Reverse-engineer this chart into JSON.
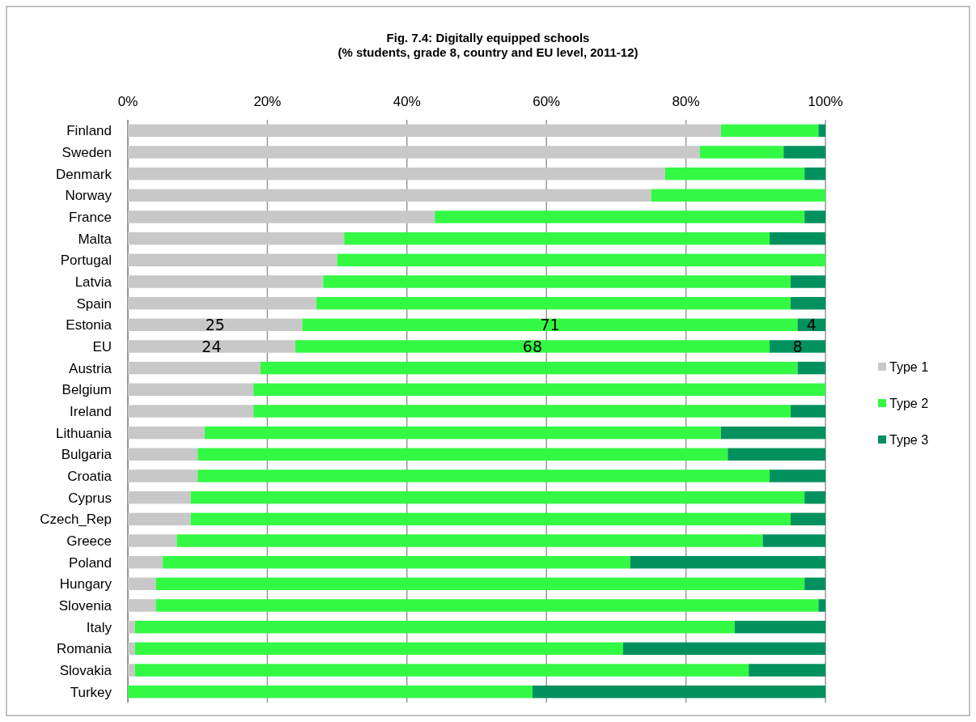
{
  "chart_data": {
    "type": "bar",
    "orientation": "horizontal",
    "stacked": true,
    "title": "Fig. 7.4: Digitally equipped schools",
    "subtitle": "(% students, grade 8, country and EU level, 2011-12)",
    "categories": [
      "Finland",
      "Sweden",
      "Denmark",
      "Norway",
      "France",
      "Malta",
      "Portugal",
      "Latvia",
      "Spain",
      "Estonia",
      "EU",
      "Austria",
      "Belgium",
      "Ireland",
      "Lithuania",
      "Bulgaria",
      "Croatia",
      "Cyprus",
      "Czech_Rep",
      "Greece",
      "Poland",
      "Hungary",
      "Slovenia",
      "Italy",
      "Romania",
      "Slovakia",
      "Turkey"
    ],
    "series": [
      {
        "name": "Type 1",
        "color": "#c8c8c8",
        "values": [
          85,
          82,
          77,
          75,
          44,
          31,
          30,
          28,
          27,
          25,
          24,
          19,
          18,
          18,
          11,
          10,
          10,
          9,
          9,
          7,
          5,
          4,
          4,
          1,
          1,
          1,
          0
        ],
        "value_labels": [
          null,
          null,
          null,
          null,
          null,
          null,
          null,
          null,
          null,
          "25",
          "24",
          null,
          null,
          null,
          null,
          null,
          null,
          null,
          null,
          null,
          null,
          null,
          null,
          null,
          null,
          null,
          null
        ]
      },
      {
        "name": "Type 2",
        "color": "#33f944",
        "values": [
          14,
          12,
          20,
          25,
          53,
          61,
          70,
          67,
          68,
          71,
          68,
          77,
          82,
          77,
          74,
          76,
          82,
          88,
          86,
          84,
          67,
          93,
          95,
          86,
          70,
          88,
          58
        ],
        "value_labels": [
          null,
          null,
          null,
          null,
          null,
          null,
          null,
          null,
          null,
          "71",
          "68",
          null,
          null,
          null,
          null,
          null,
          null,
          null,
          null,
          null,
          null,
          null,
          null,
          null,
          null,
          null,
          null
        ]
      },
      {
        "name": "Type 3",
        "color": "#00915e",
        "values": [
          1,
          6,
          3,
          0,
          3,
          8,
          0,
          5,
          5,
          4,
          8,
          4,
          0,
          5,
          15,
          14,
          8,
          3,
          5,
          9,
          28,
          3,
          1,
          13,
          29,
          11,
          42
        ],
        "value_labels": [
          null,
          null,
          null,
          null,
          null,
          null,
          null,
          null,
          null,
          "4",
          "8",
          null,
          null,
          null,
          null,
          null,
          null,
          null,
          null,
          null,
          null,
          null,
          null,
          null,
          null,
          null,
          null
        ]
      }
    ],
    "xlim": [
      0,
      100
    ],
    "xticks": [
      {
        "value": 0,
        "label": "0%"
      },
      {
        "value": 20,
        "label": "20%"
      },
      {
        "value": 40,
        "label": "40%"
      },
      {
        "value": 60,
        "label": "60%"
      },
      {
        "value": 80,
        "label": "80%"
      },
      {
        "value": 100,
        "label": "100%"
      }
    ],
    "grid": "x",
    "legend": "right"
  }
}
